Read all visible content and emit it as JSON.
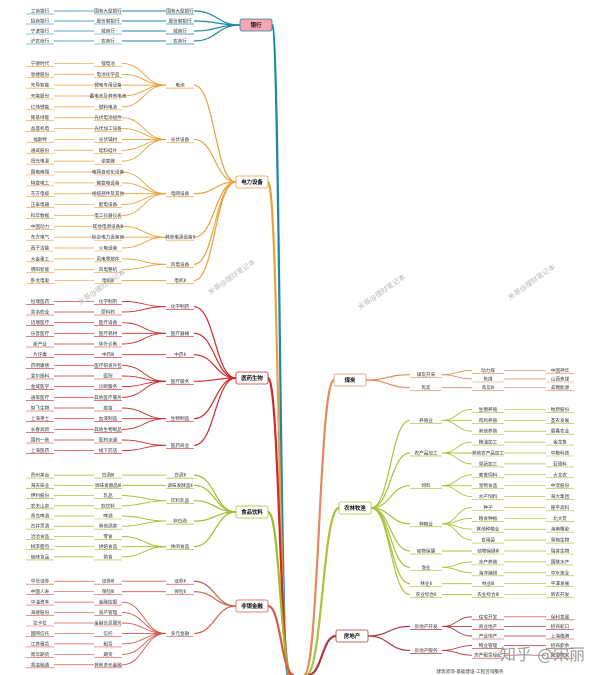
{
  "watermarks": [
    "米哥@理财笔记本",
    "米哥@理财笔记本",
    "米哥@理财笔记本",
    "米哥@理财笔记本"
  ],
  "site_mark": "知乎 @宋丽",
  "branches": [
    {
      "label": "银行",
      "color": "#1f86a8",
      "hub_fill": "#f7a6b3",
      "groups": [
        {
          "label": "国有大型银行",
          "leaves": [
            "工商银行",
            "国有大型银行"
          ]
        },
        {
          "label": "股份制银行",
          "leaves": [
            "招商银行",
            "股份制银行"
          ]
        },
        {
          "label": "城商行",
          "leaves": [
            "宁波银行",
            "城商行"
          ]
        },
        {
          "label": "农商行",
          "leaves": [
            "沪农商行",
            "农商行"
          ]
        }
      ]
    },
    {
      "label": "电力设备",
      "color": "#e9a13b",
      "hub_fill": "#ffffff",
      "groups": [
        {
          "label": "电池",
          "leaves": [
            "宁德时代",
            "锂电池",
            "恩捷股份",
            "电池化学品",
            "先导智能",
            "锂电专用设备",
            "天能股份",
            "蓄电池及其他电池",
            "亿纬锂能",
            "燃料电池"
          ]
        },
        {
          "label": "光伏设备",
          "leaves": [
            "隆基绿能",
            "光伏电池组件",
            "晶盛机电",
            "光伏加工设备",
            "福斯特",
            "光伏辅材",
            "通威股份",
            "硅料硅片",
            "阳光电源",
            "逆变器"
          ]
        },
        {
          "label": "电网设备",
          "leaves": [
            "国电南瑞",
            "电网自动化设备",
            "特变电工",
            "输变电设备",
            "东方电缆",
            "线缆部件及其他",
            "正泰电器",
            "配电设备",
            "科华数据",
            "电工仪器仪表"
          ]
        },
        {
          "label": "其他电源设备Ⅱ",
          "leaves": [
            "中国动力",
            "其他电源设备Ⅲ",
            "东方电气",
            "综合电力设备商",
            "西子洁能",
            "火电设备"
          ]
        },
        {
          "label": "风电设备",
          "leaves": [
            "大金重工",
            "风电零部件",
            "明阳智能",
            "风电整机"
          ]
        },
        {
          "label": "电机Ⅱ",
          "leaves": [
            "卧龙电驱",
            "电机Ⅲ"
          ]
        }
      ]
    },
    {
      "label": "医药生物",
      "color": "#cc2b2b",
      "hub_fill": "#ffffff",
      "groups": [
        {
          "label": "化学制药",
          "leaves": [
            "恒瑞医药",
            "化学制剂",
            "普洛药业",
            "原料药"
          ]
        },
        {
          "label": "医疗器械",
          "leaves": [
            "迈瑞医疗",
            "医疗设备",
            "乐普医疗",
            "医疗耗材",
            "新产业",
            "体外诊断"
          ]
        },
        {
          "label": "中药Ⅱ",
          "leaves": [
            "片仔癀",
            "中药Ⅲ"
          ]
        },
        {
          "label": "医疗服务",
          "leaves": [
            "药明康德",
            "医疗研发外包",
            "爱尔眼科",
            "医院",
            "金域医学",
            "诊断服务",
            "通策医疗",
            "其他医疗服务"
          ]
        },
        {
          "label": "生物制品",
          "leaves": [
            "智飞生物",
            "疫苗",
            "上海莱士",
            "血液制品",
            "长春高新",
            "其他生物制品"
          ]
        },
        {
          "label": "医药商业",
          "leaves": [
            "国药一致",
            "医药流通",
            "上海医药",
            "线下药店"
          ]
        }
      ]
    },
    {
      "label": "食品饮料",
      "color": "#9dbb2c",
      "hub_fill": "#ffffff",
      "groups": [
        {
          "label": "白酒Ⅱ",
          "leaves": [
            "贵州茅台",
            "白酒Ⅲ"
          ]
        },
        {
          "label": "调味发酵品Ⅱ",
          "leaves": [
            "海天味业",
            "调味发酵品Ⅲ"
          ]
        },
        {
          "label": "饮料乳品",
          "leaves": [
            "伊利股份",
            "乳品",
            "农夫山泉",
            "软饮料"
          ]
        },
        {
          "label": "非白酒",
          "leaves": [
            "青岛啤酒",
            "啤酒",
            "古井贡酒",
            "其他酒类"
          ]
        },
        {
          "label": "休闲食品",
          "leaves": [
            "洽洽食品",
            "零食",
            "桃李面包",
            "烘焙食品",
            "绝味食品",
            "熟食"
          ]
        }
      ]
    },
    {
      "label": "非银金融",
      "color": "#d45a4e",
      "hub_fill": "#ffffff",
      "groups": [
        {
          "label": "证券Ⅱ",
          "leaves": [
            "中信证券",
            "证券Ⅲ"
          ]
        },
        {
          "label": "保险Ⅱ",
          "leaves": [
            "中国人寿",
            "保险Ⅲ"
          ]
        },
        {
          "label": "多元金融",
          "leaves": [
            "中油资本",
            "金融控股",
            "海德股份",
            "资产管理",
            "拉卡拉",
            "金融信息服务",
            "国网信托",
            "信托",
            "江苏租赁",
            "租赁",
            "南华期货",
            "期货",
            "香溢融通",
            "其他多元金融"
          ]
        }
      ]
    }
  ],
  "branches_right": [
    {
      "label": "煤炭",
      "color": "#e58a5c",
      "hub_fill": "#ffffff",
      "groups": [
        {
          "label": "煤炭开采",
          "leaves": [
            "动力煤",
            "中国神华",
            "焦煤",
            "山西焦煤"
          ]
        },
        {
          "label": "焦炭",
          "leaves": [
            "焦炭Ⅲ",
            "美锦能源"
          ]
        }
      ]
    },
    {
      "label": "农林牧渔",
      "color": "#a8c23a",
      "hub_fill": "#ffffff",
      "groups": [
        {
          "label": "养殖业",
          "leaves": [
            "生猪养殖",
            "牧原股份",
            "肉鸡养殖",
            "圣农发展",
            "其他养殖",
            "晨鑫农业"
          ]
        },
        {
          "label": "农产品加工",
          "leaves": [
            "粮油加工",
            "金龙鱼",
            "其他农产品加工",
            "中粮科技",
            "果蔬加工",
            "亚德科"
          ]
        },
        {
          "label": "饲料",
          "leaves": [
            "畜禽饲料",
            "大北农",
            "宠物食品",
            "中宠股份",
            "水产饲料",
            "海大集团"
          ]
        },
        {
          "label": "种植业",
          "leaves": [
            "种子",
            "隆平高科",
            "粮食种植",
            "北大荒",
            "其他种植业",
            "海南橡胶",
            "食用菌",
            "雪榕生物"
          ]
        },
        {
          "label": "动物保健",
          "leaves": [
            "动物保健Ⅲ",
            "瑞普生物"
          ]
        },
        {
          "label": "渔业",
          "leaves": [
            "水产养殖",
            "国联水产",
            "海洋捕捞",
            "中水渔业"
          ]
        },
        {
          "label": "林业Ⅱ",
          "leaves": [
            "林业Ⅲ",
            "平潭发展"
          ]
        },
        {
          "label": "农业综合Ⅱ",
          "leaves": [
            "农业综合Ⅲ",
            "新农开发"
          ]
        }
      ]
    },
    {
      "label": "房地产",
      "color": "#b03a3a",
      "hub_fill": "#ffffff",
      "groups": [
        {
          "label": "房地产开发",
          "leaves": [
            "住宅开发",
            "保利发展",
            "商业地产",
            "招商蛇口",
            "产业地产",
            "上海临港"
          ]
        },
        {
          "label": "房地产服务",
          "leaves": [
            "物业管理",
            "招商积余",
            "房产租赁经纪",
            "我爱我家"
          ]
        }
      ]
    }
  ],
  "bottom_cut": "建筑装饰·基础建设·工程咨询服务"
}
